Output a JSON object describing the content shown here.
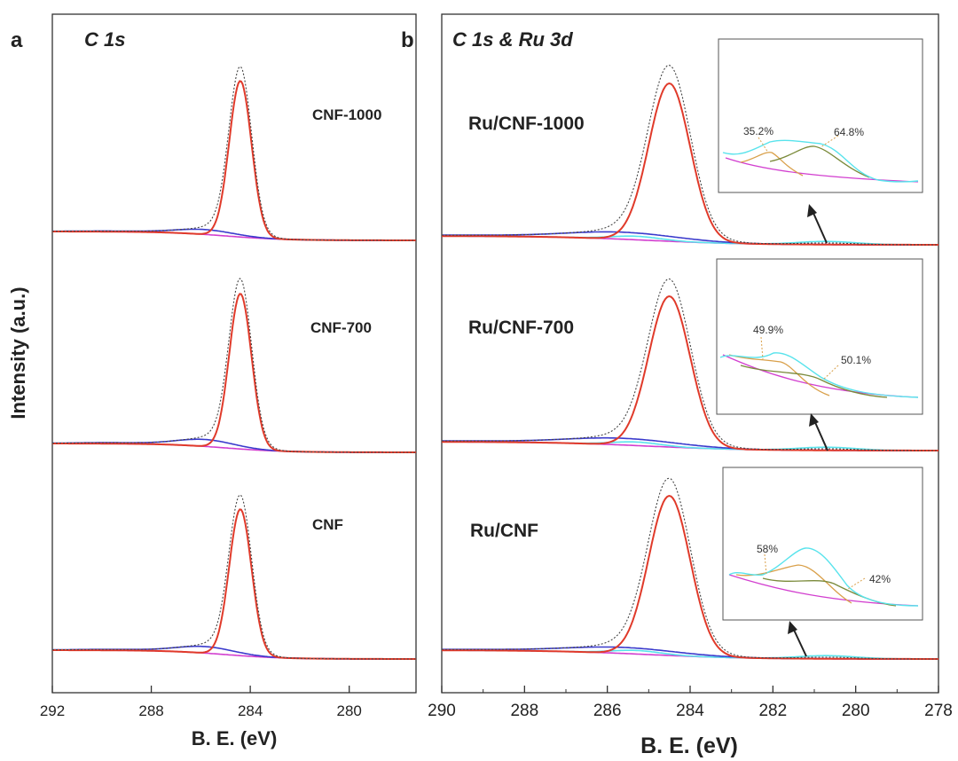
{
  "chart_data": [
    {
      "type": "line",
      "panel_letter": "a",
      "title": "C 1s",
      "xlabel": "B. E. (eV)",
      "ylabel": "Intensity (a.u.)",
      "xlim": [
        292,
        277.3
      ],
      "xticks": [
        292,
        288,
        284,
        280
      ],
      "tick_labels": [
        "292",
        "288",
        "284",
        "280"
      ],
      "y_ticks_shown": false,
      "curves": {
        "main_peak": {
          "center_eV": 284.4,
          "sigma_eV": 0.45,
          "color": "#e03a2a"
        },
        "side_peak": {
          "center_eV": 285.8,
          "sigma_eV": 1.15,
          "color": "#3a3acc"
        },
        "background": {
          "color": "#d23fcf"
        },
        "envelope": {
          "color": "#444444",
          "style": "dotted"
        }
      },
      "series": [
        {
          "name": "CNF-1000",
          "label": "CNF-1000",
          "main_amplitude": 1.0,
          "side_amplitude": 0.14
        },
        {
          "name": "CNF-700",
          "label": "CNF-700",
          "main_amplitude": 1.0,
          "side_amplitude": 0.2
        },
        {
          "name": "CNF",
          "label": "CNF",
          "main_amplitude": 1.0,
          "side_amplitude": 0.2
        }
      ]
    },
    {
      "type": "line",
      "panel_letter": "b",
      "title": "C 1s & Ru 3d",
      "xlabel": "B. E. (eV)",
      "xlim": [
        290,
        278
      ],
      "xticks": [
        290,
        288,
        286,
        284,
        282,
        280,
        278
      ],
      "minor_xticks": [
        289,
        287,
        285,
        283,
        281,
        279
      ],
      "tick_labels": [
        "290",
        "288",
        "286",
        "284",
        "282",
        "280",
        "278"
      ],
      "y_ticks_shown": false,
      "curves": {
        "main_peak": {
          "center_eV": 284.5,
          "sigma_eV": 0.5,
          "color": "#e03a2a"
        },
        "side_peak": {
          "center_eV": 285.6,
          "sigma_eV": 1.3,
          "color": "#3a3acc"
        },
        "ru_component": {
          "color": "#58e3ec"
        },
        "background": {
          "color": "#d23fcf"
        },
        "envelope": {
          "color": "#444444",
          "style": "dotted"
        }
      },
      "series": [
        {
          "name": "Ru/CNF-1000",
          "label": "Ru/CNF-1000",
          "main_amplitude": 1.0,
          "side_amplitude": 0.2,
          "inset": {
            "components": [
              {
                "label": "35.2%",
                "value": 35.2
              },
              {
                "label": "64.8%",
                "value": 64.8
              }
            ]
          }
        },
        {
          "name": "Ru/CNF-700",
          "label": "Ru/CNF-700",
          "main_amplitude": 1.0,
          "side_amplitude": 0.2,
          "inset": {
            "components": [
              {
                "label": "49.9%",
                "value": 49.9
              },
              {
                "label": "50.1%",
                "value": 50.1
              }
            ]
          }
        },
        {
          "name": "Ru/CNF",
          "label": "Ru/CNF",
          "main_amplitude": 1.0,
          "side_amplitude": 0.17,
          "inset": {
            "components": [
              {
                "label": "58%",
                "value": 58
              },
              {
                "label": "42%",
                "value": 42
              }
            ]
          }
        }
      ]
    }
  ],
  "colors": {
    "frame": "#333333",
    "label_text": "#222222",
    "inset_orange": "#d9a04a",
    "inset_olive": "#7a8a3a",
    "inset_cyan": "#58e3ec",
    "inset_magenta": "#d23fcf",
    "arrow": "#222222"
  }
}
